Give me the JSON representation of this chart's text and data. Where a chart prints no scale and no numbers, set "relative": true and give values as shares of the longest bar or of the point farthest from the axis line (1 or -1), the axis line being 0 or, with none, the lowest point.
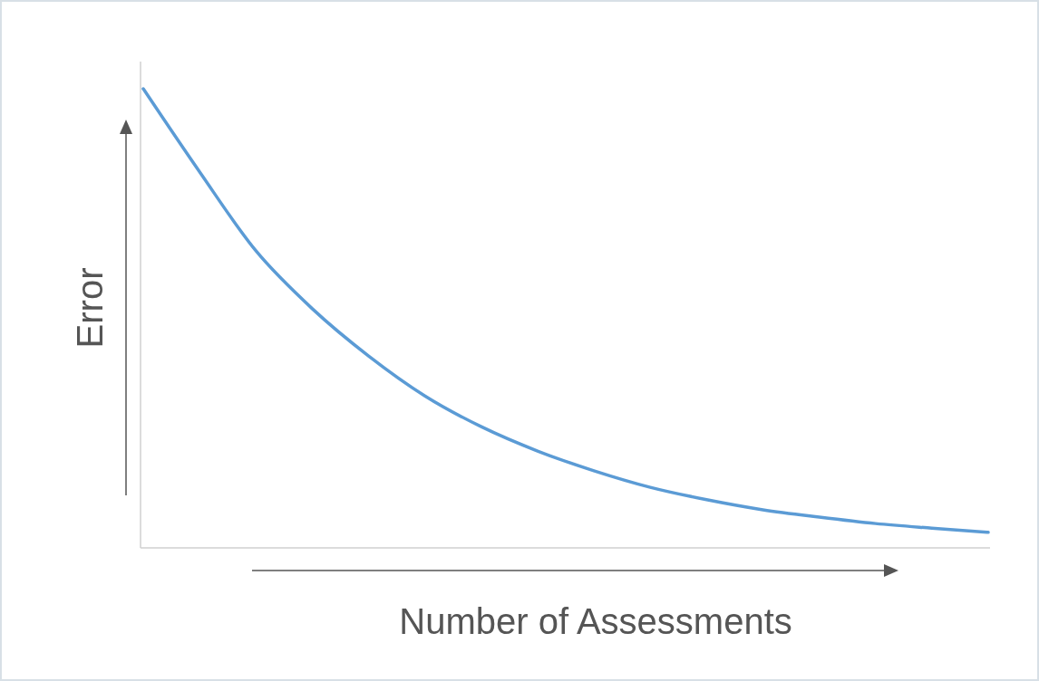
{
  "chart_data": {
    "type": "line",
    "relative": true,
    "xlabel": "Number of Assessments",
    "ylabel": "Error",
    "categories": [
      null,
      null,
      null,
      null,
      null,
      null,
      null,
      null,
      null,
      null,
      null,
      null,
      null,
      null,
      null,
      null
    ],
    "series": [
      {
        "color": "#5b9bd5",
        "values": [
          1.0,
          0.819,
          0.647,
          0.521,
          0.418,
          0.331,
          0.264,
          0.211,
          0.168,
          0.132,
          0.105,
          0.083,
          0.067,
          0.053,
          0.043,
          0.034
        ]
      }
    ]
  }
}
